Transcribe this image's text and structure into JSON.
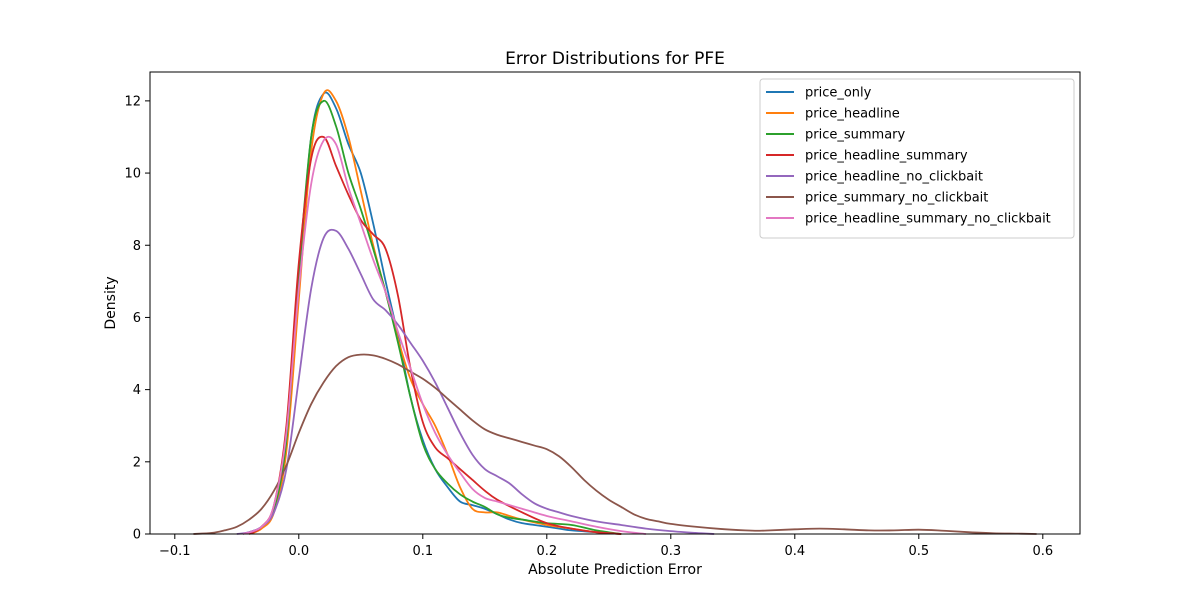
{
  "chart_data": {
    "type": "line",
    "title": "Error Distributions for PFE",
    "xlabel": "Absolute Prediction Error",
    "ylabel": "Density",
    "xlim": [
      -0.12,
      0.63
    ],
    "ylim": [
      0,
      12.8
    ],
    "xticks": [
      -0.1,
      0.0,
      0.1,
      0.2,
      0.3,
      0.4,
      0.5,
      0.6
    ],
    "xtick_labels": [
      "−0.1",
      "0.0",
      "0.1",
      "0.2",
      "0.3",
      "0.4",
      "0.5",
      "0.6"
    ],
    "yticks": [
      0,
      2,
      4,
      6,
      8,
      10,
      12
    ],
    "ytick_labels": [
      "0",
      "2",
      "4",
      "6",
      "8",
      "10",
      "12"
    ],
    "grid": false,
    "legend_position": "top-right",
    "series": [
      {
        "name": "price_only",
        "color": "#1f77b4",
        "x": [
          -0.045,
          -0.03,
          -0.02,
          -0.01,
          0.0,
          0.01,
          0.02,
          0.03,
          0.04,
          0.05,
          0.06,
          0.07,
          0.08,
          0.09,
          0.1,
          0.11,
          0.12,
          0.13,
          0.14,
          0.15,
          0.16,
          0.17,
          0.18,
          0.19,
          0.2,
          0.21,
          0.22,
          0.24,
          0.26
        ],
        "y": [
          0,
          0.2,
          0.7,
          2.5,
          7.0,
          11.0,
          12.2,
          11.8,
          10.8,
          10.0,
          8.6,
          7.0,
          5.5,
          3.8,
          2.6,
          1.8,
          1.3,
          0.9,
          0.8,
          0.7,
          0.55,
          0.4,
          0.3,
          0.25,
          0.2,
          0.15,
          0.1,
          0.05,
          0
        ]
      },
      {
        "name": "price_headline",
        "color": "#ff7f0e",
        "x": [
          -0.04,
          -0.03,
          -0.02,
          -0.01,
          0.0,
          0.01,
          0.02,
          0.03,
          0.04,
          0.05,
          0.06,
          0.07,
          0.08,
          0.09,
          0.1,
          0.11,
          0.12,
          0.13,
          0.14,
          0.15,
          0.16,
          0.17,
          0.18,
          0.2,
          0.22,
          0.24,
          0.26
        ],
        "y": [
          0,
          0.15,
          0.6,
          2.3,
          6.5,
          10.6,
          12.2,
          12.0,
          11.0,
          9.5,
          8.0,
          6.7,
          5.4,
          4.3,
          3.6,
          3.0,
          2.2,
          1.3,
          0.7,
          0.6,
          0.6,
          0.5,
          0.4,
          0.25,
          0.15,
          0.05,
          0
        ]
      },
      {
        "name": "price_summary",
        "color": "#2ca02c",
        "x": [
          -0.04,
          -0.03,
          -0.02,
          -0.01,
          0.0,
          0.01,
          0.02,
          0.03,
          0.04,
          0.05,
          0.06,
          0.07,
          0.08,
          0.09,
          0.1,
          0.11,
          0.12,
          0.13,
          0.14,
          0.15,
          0.16,
          0.17,
          0.18,
          0.2,
          0.22,
          0.24,
          0.26
        ],
        "y": [
          0,
          0.2,
          0.7,
          2.6,
          7.2,
          11.0,
          12.0,
          11.3,
          10.0,
          9.0,
          7.9,
          6.7,
          5.3,
          3.8,
          2.5,
          1.8,
          1.4,
          1.1,
          0.9,
          0.75,
          0.55,
          0.45,
          0.4,
          0.3,
          0.25,
          0.1,
          0
        ]
      },
      {
        "name": "price_headline_summary",
        "color": "#d62728",
        "x": [
          -0.04,
          -0.03,
          -0.02,
          -0.01,
          0.0,
          0.01,
          0.02,
          0.03,
          0.04,
          0.05,
          0.06,
          0.07,
          0.08,
          0.09,
          0.1,
          0.11,
          0.12,
          0.13,
          0.14,
          0.15,
          0.16,
          0.18,
          0.2,
          0.22,
          0.24,
          0.26
        ],
        "y": [
          0,
          0.2,
          0.8,
          3.0,
          7.5,
          10.4,
          11.0,
          10.2,
          9.4,
          8.7,
          8.3,
          7.9,
          6.6,
          4.6,
          3.1,
          2.4,
          2.1,
          1.8,
          1.5,
          1.2,
          0.95,
          0.6,
          0.3,
          0.15,
          0.05,
          0
        ]
      },
      {
        "name": "price_headline_no_clickbait",
        "color": "#9467bd",
        "x": [
          -0.05,
          -0.04,
          -0.03,
          -0.02,
          -0.01,
          0.0,
          0.01,
          0.02,
          0.03,
          0.04,
          0.05,
          0.06,
          0.07,
          0.08,
          0.09,
          0.1,
          0.11,
          0.12,
          0.13,
          0.14,
          0.15,
          0.16,
          0.17,
          0.18,
          0.19,
          0.2,
          0.21,
          0.22,
          0.24,
          0.26,
          0.28,
          0.3,
          0.32,
          0.335
        ],
        "y": [
          0,
          0.05,
          0.2,
          0.6,
          1.8,
          4.3,
          6.8,
          8.2,
          8.4,
          7.9,
          7.2,
          6.5,
          6.2,
          5.8,
          5.3,
          4.8,
          4.2,
          3.5,
          2.8,
          2.2,
          1.8,
          1.6,
          1.4,
          1.1,
          0.85,
          0.7,
          0.6,
          0.5,
          0.35,
          0.25,
          0.15,
          0.08,
          0.03,
          0
        ]
      },
      {
        "name": "price_summary_no_clickbait",
        "color": "#8c564b",
        "x": [
          -0.085,
          -0.07,
          -0.06,
          -0.05,
          -0.04,
          -0.03,
          -0.02,
          -0.01,
          0.0,
          0.01,
          0.02,
          0.03,
          0.04,
          0.05,
          0.06,
          0.07,
          0.08,
          0.09,
          0.1,
          0.11,
          0.12,
          0.13,
          0.14,
          0.15,
          0.16,
          0.17,
          0.18,
          0.19,
          0.2,
          0.21,
          0.22,
          0.23,
          0.24,
          0.25,
          0.26,
          0.27,
          0.28,
          0.29,
          0.3,
          0.32,
          0.34,
          0.36,
          0.37,
          0.38,
          0.4,
          0.42,
          0.44,
          0.46,
          0.48,
          0.5,
          0.52,
          0.54,
          0.56,
          0.58,
          0.595
        ],
        "y": [
          0,
          0.03,
          0.1,
          0.2,
          0.4,
          0.7,
          1.2,
          1.9,
          2.8,
          3.6,
          4.2,
          4.65,
          4.9,
          4.97,
          4.95,
          4.85,
          4.7,
          4.5,
          4.3,
          4.05,
          3.75,
          3.45,
          3.15,
          2.9,
          2.75,
          2.65,
          2.55,
          2.45,
          2.35,
          2.15,
          1.85,
          1.5,
          1.2,
          0.95,
          0.75,
          0.55,
          0.42,
          0.35,
          0.28,
          0.2,
          0.14,
          0.1,
          0.09,
          0.1,
          0.13,
          0.15,
          0.13,
          0.1,
          0.1,
          0.12,
          0.09,
          0.05,
          0.02,
          0.01,
          0
        ]
      },
      {
        "name": "price_headline_summary_no_clickbait",
        "color": "#e377c2",
        "x": [
          -0.045,
          -0.03,
          -0.02,
          -0.01,
          0.0,
          0.01,
          0.02,
          0.03,
          0.04,
          0.05,
          0.06,
          0.07,
          0.08,
          0.09,
          0.1,
          0.11,
          0.12,
          0.13,
          0.14,
          0.15,
          0.16,
          0.17,
          0.18,
          0.2,
          0.22,
          0.24,
          0.26,
          0.28
        ],
        "y": [
          0,
          0.2,
          0.8,
          2.8,
          6.8,
          9.7,
          10.9,
          10.8,
          9.6,
          8.6,
          7.6,
          6.7,
          5.6,
          4.6,
          3.6,
          2.8,
          2.2,
          1.7,
          1.25,
          1.0,
          0.9,
          0.8,
          0.7,
          0.5,
          0.35,
          0.2,
          0.08,
          0
        ]
      }
    ]
  }
}
